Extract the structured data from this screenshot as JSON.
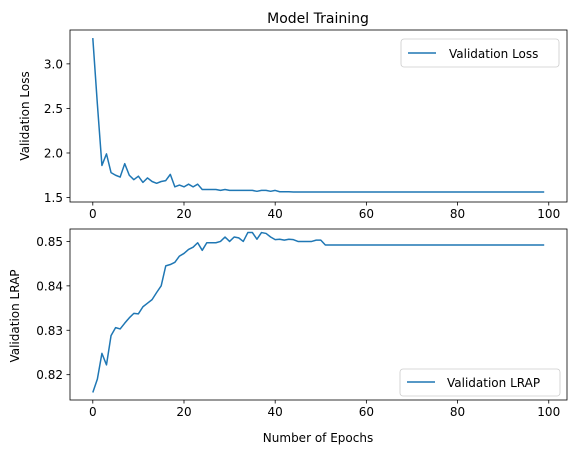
{
  "chart_data": [
    {
      "type": "line",
      "title": "Model Training",
      "xlabel": "",
      "ylabel": "Validation Loss",
      "xlim": [
        -5,
        104
      ],
      "ylim": [
        1.45,
        3.38
      ],
      "xticks": [
        0,
        20,
        40,
        60,
        80,
        100
      ],
      "yticks": [
        1.5,
        2.0,
        2.5,
        3.0
      ],
      "ytick_labels": [
        "1.5",
        "2.0",
        "2.5",
        "3.0"
      ],
      "grid": false,
      "legend_position": "upper right",
      "series": [
        {
          "name": "Validation Loss",
          "color": "#1f77b4",
          "x_start": 0,
          "values": [
            3.29,
            2.55,
            1.86,
            1.99,
            1.78,
            1.75,
            1.73,
            1.88,
            1.75,
            1.7,
            1.74,
            1.67,
            1.72,
            1.68,
            1.66,
            1.68,
            1.69,
            1.76,
            1.62,
            1.64,
            1.62,
            1.65,
            1.62,
            1.65,
            1.59,
            1.59,
            1.59,
            1.59,
            1.58,
            1.59,
            1.58,
            1.58,
            1.58,
            1.58,
            1.58,
            1.58,
            1.57,
            1.58,
            1.58,
            1.57,
            1.58,
            1.565,
            1.565,
            1.565,
            1.562,
            1.562,
            1.562,
            1.562,
            1.562,
            1.562,
            1.562,
            1.562,
            1.562,
            1.562,
            1.562,
            1.562,
            1.562,
            1.562,
            1.562,
            1.562,
            1.562,
            1.562,
            1.562,
            1.562,
            1.562,
            1.562,
            1.562,
            1.562,
            1.562,
            1.562,
            1.562,
            1.562,
            1.562,
            1.562,
            1.562,
            1.562,
            1.562,
            1.562,
            1.562,
            1.562,
            1.562,
            1.562,
            1.562,
            1.562,
            1.562,
            1.562,
            1.562,
            1.562,
            1.562,
            1.562,
            1.562,
            1.562,
            1.562,
            1.562,
            1.562,
            1.562,
            1.562,
            1.562,
            1.562,
            1.562
          ]
        }
      ]
    },
    {
      "type": "line",
      "title": "",
      "xlabel": "Number of Epochs",
      "ylabel": "Validation LRAP",
      "xlim": [
        -5,
        104
      ],
      "ylim": [
        0.8143,
        0.8528
      ],
      "xticks": [
        0,
        20,
        40,
        60,
        80,
        100
      ],
      "yticks": [
        0.82,
        0.83,
        0.84,
        0.85
      ],
      "ytick_labels": [
        "0.82",
        "0.83",
        "0.84",
        "0.85"
      ],
      "grid": false,
      "legend_position": "lower right",
      "series": [
        {
          "name": "Validation LRAP",
          "color": "#1f77b4",
          "x_start": 0,
          "values": [
            0.816,
            0.819,
            0.8248,
            0.8222,
            0.8288,
            0.8306,
            0.8303,
            0.8316,
            0.8328,
            0.8338,
            0.8337,
            0.8353,
            0.8361,
            0.8369,
            0.8385,
            0.84,
            0.8445,
            0.8448,
            0.8453,
            0.8467,
            0.8473,
            0.8482,
            0.8487,
            0.8497,
            0.848,
            0.8497,
            0.8497,
            0.8497,
            0.85,
            0.851,
            0.85,
            0.851,
            0.8508,
            0.85,
            0.852,
            0.852,
            0.8505,
            0.852,
            0.8518,
            0.851,
            0.8504,
            0.8505,
            0.8503,
            0.8505,
            0.8504,
            0.85,
            0.85,
            0.85,
            0.85,
            0.8503,
            0.8503,
            0.8492,
            0.8492,
            0.8492,
            0.8492,
            0.8492,
            0.8492,
            0.8492,
            0.8492,
            0.8492,
            0.8492,
            0.8492,
            0.8492,
            0.8492,
            0.8492,
            0.8492,
            0.8492,
            0.8492,
            0.8492,
            0.8492,
            0.8492,
            0.8492,
            0.8492,
            0.8492,
            0.8492,
            0.8492,
            0.8492,
            0.8492,
            0.8492,
            0.8492,
            0.8492,
            0.8492,
            0.8492,
            0.8492,
            0.8492,
            0.8492,
            0.8492,
            0.8492,
            0.8492,
            0.8492,
            0.8492,
            0.8492,
            0.8492,
            0.8492,
            0.8492,
            0.8492,
            0.8492,
            0.8492,
            0.8492,
            0.8492
          ]
        }
      ]
    }
  ]
}
